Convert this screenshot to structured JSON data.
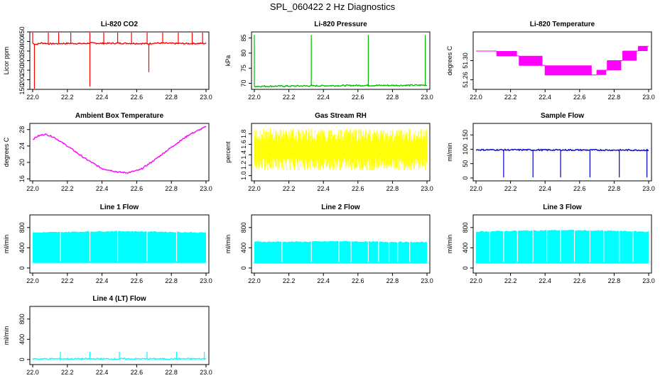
{
  "title": "SPL_060422  2 Hz Diagnostics",
  "chart_data": [
    {
      "type": "line",
      "title": "Li-820 CO2",
      "ylabel": "Licor ppm",
      "color": "#ff0000",
      "xlim": [
        22.0,
        23.0
      ],
      "ylim": [
        150,
        450
      ],
      "xticks": [
        "22.0",
        "22.2",
        "22.4",
        "22.6",
        "22.8",
        "23.0"
      ],
      "yticks": [
        "150",
        "200",
        "250",
        "300",
        "350",
        "400",
        "450"
      ],
      "x": [
        22.0,
        22.02,
        22.05,
        22.1,
        22.2,
        22.3,
        22.33,
        22.4,
        22.5,
        22.6,
        22.67,
        22.7,
        22.8,
        22.9,
        23.0
      ],
      "values": [
        390,
        385,
        392,
        388,
        390,
        389,
        392,
        390,
        391,
        390,
        388,
        392,
        390,
        389,
        390
      ],
      "spikes_up": [
        22.0,
        22.09,
        22.15,
        22.22,
        22.33,
        22.41,
        22.49,
        22.57,
        22.66,
        22.75,
        22.84,
        22.92,
        22.98
      ],
      "spikes_down": [
        {
          "x": 22.01,
          "y": 150
        },
        {
          "x": 22.33,
          "y": 165
        },
        {
          "x": 22.67,
          "y": 240
        }
      ]
    },
    {
      "type": "line",
      "title": "Li-820 Pressure",
      "ylabel": "kPa",
      "color": "#00bb00",
      "xlim": [
        22.0,
        23.0
      ],
      "ylim": [
        68,
        87
      ],
      "xticks": [
        "22.0",
        "22.2",
        "22.4",
        "22.6",
        "22.8",
        "23.0"
      ],
      "yticks": [
        "70",
        "75",
        "80",
        "85"
      ],
      "x": [
        22.0,
        22.2,
        22.4,
        22.6,
        22.8,
        23.0
      ],
      "values": [
        69.0,
        69.1,
        69.2,
        69.3,
        69.3,
        69.4
      ],
      "spikes_up": [
        22.0,
        22.33,
        22.66,
        22.99
      ]
    },
    {
      "type": "line",
      "title": "Li-820 Temperature",
      "ylabel": "degrees C",
      "color": "#ff00ff",
      "xlim": [
        22.0,
        23.0
      ],
      "ylim": [
        51.24,
        51.36
      ],
      "xticks": [
        "22.0",
        "22.2",
        "22.4",
        "22.6",
        "22.8",
        "23.0"
      ],
      "yticks": [
        "51.26",
        "51.30"
      ],
      "levels": [
        {
          "x0": 22.0,
          "x1": 22.12,
          "v": 51.32
        },
        {
          "x0": 22.12,
          "x1": 22.25,
          "v": 51.31
        },
        {
          "x0": 22.25,
          "x1": 22.4,
          "v": 51.29
        },
        {
          "x0": 22.4,
          "x1": 22.7,
          "v": 51.27
        },
        {
          "x0": 22.7,
          "x1": 22.76,
          "v": 51.28
        },
        {
          "x0": 22.76,
          "x1": 22.85,
          "v": 51.3
        },
        {
          "x0": 22.85,
          "x1": 22.94,
          "v": 51.32
        },
        {
          "x0": 22.94,
          "x1": 23.0,
          "v": 51.33
        }
      ]
    },
    {
      "type": "line",
      "title": "Ambient Box Temperature",
      "ylabel": "degrees C",
      "color": "#ff00ff",
      "xlim": [
        22.0,
        23.0
      ],
      "ylim": [
        15.5,
        29.5
      ],
      "xticks": [
        "22.0",
        "22.2",
        "22.4",
        "22.6",
        "22.8",
        "23.0"
      ],
      "yticks": [
        "16",
        "20",
        "24",
        "28"
      ],
      "x": [
        22.0,
        22.03,
        22.07,
        22.12,
        22.2,
        22.3,
        22.4,
        22.5,
        22.55,
        22.62,
        22.7,
        22.8,
        22.9,
        23.0
      ],
      "values": [
        25.6,
        26.4,
        26.9,
        26.2,
        24.0,
        21.0,
        18.5,
        17.6,
        17.5,
        18.2,
        20.5,
        23.7,
        26.7,
        28.7
      ]
    },
    {
      "type": "line",
      "title": "Gas Stream RH",
      "ylabel": "percent",
      "color": "#ffff00",
      "xlim": [
        22.0,
        23.0
      ],
      "ylim": [
        0.9,
        2.0
      ],
      "xticks": [
        "22.0",
        "22.2",
        "22.4",
        "22.6",
        "22.8",
        "23.0"
      ],
      "yticks": [
        "1.0",
        "1.2",
        "1.4",
        "1.6",
        "1.8"
      ],
      "x": [
        22.0,
        23.0
      ],
      "values": [
        1.5,
        1.5
      ],
      "band": [
        1.1,
        1.9
      ]
    },
    {
      "type": "line",
      "title": "Sample Flow",
      "ylabel": "ml/min",
      "color": "#0000cc",
      "xlim": [
        22.0,
        23.0
      ],
      "ylim": [
        -10,
        190
      ],
      "xticks": [
        "22.0",
        "22.2",
        "22.4",
        "22.6",
        "22.8",
        "23.0"
      ],
      "yticks": [
        "0",
        "50",
        "100",
        "150"
      ],
      "x": [
        22.0,
        23.0
      ],
      "values": [
        98,
        97
      ],
      "spikes_down": [
        22.16,
        22.33,
        22.49,
        22.66,
        22.83,
        22.99
      ]
    },
    {
      "type": "area",
      "title": "Line 1 Flow",
      "ylabel": "ml/min",
      "color": "#00ffff",
      "xlim": [
        22.0,
        23.0
      ],
      "ylim": [
        -100,
        1050
      ],
      "xticks": [
        "22.0",
        "22.2",
        "22.4",
        "22.6",
        "22.8",
        "23.0"
      ],
      "yticks": [
        "0",
        "400",
        "800"
      ],
      "x": [
        22.0,
        22.3,
        22.5,
        22.7,
        23.0
      ],
      "values": [
        700,
        720,
        730,
        720,
        700
      ],
      "low": 100,
      "gaps": [
        22.16,
        22.33,
        22.49,
        22.66,
        22.83
      ]
    },
    {
      "type": "area",
      "title": "Line 2 Flow",
      "ylabel": "ml/min",
      "color": "#00ffff",
      "xlim": [
        22.0,
        23.0
      ],
      "ylim": [
        -100,
        1050
      ],
      "xticks": [
        "22.0",
        "22.2",
        "22.4",
        "22.6",
        "22.8",
        "23.0"
      ],
      "yticks": [
        "0",
        "400",
        "800"
      ],
      "x": [
        22.0,
        22.3,
        22.5,
        22.7,
        23.0
      ],
      "values": [
        520,
        520,
        530,
        520,
        510
      ],
      "low": 90,
      "gaps": [
        22.16,
        22.33,
        22.49,
        22.56,
        22.66,
        22.72,
        22.78,
        22.83,
        22.9
      ]
    },
    {
      "type": "area",
      "title": "Line 3 Flow",
      "ylabel": "ml/min",
      "color": "#00ffff",
      "xlim": [
        22.0,
        23.0
      ],
      "ylim": [
        -100,
        1050
      ],
      "xticks": [
        "22.0",
        "22.2",
        "22.4",
        "22.6",
        "22.8",
        "23.0"
      ],
      "yticks": [
        "0",
        "400",
        "800"
      ],
      "x": [
        22.0,
        22.3,
        22.5,
        22.7,
        23.0
      ],
      "values": [
        720,
        740,
        750,
        740,
        720
      ],
      "low": 90,
      "gaps": [
        22.08,
        22.16,
        22.24,
        22.33,
        22.41,
        22.49,
        22.57,
        22.66,
        22.74,
        22.83,
        22.91
      ]
    },
    {
      "type": "line",
      "title": "Line 4 (LT) Flow",
      "ylabel": "ml/min",
      "color": "#00ffff",
      "xlim": [
        22.0,
        23.0
      ],
      "ylim": [
        -100,
        1050
      ],
      "xticks": [
        "22.0",
        "22.2",
        "22.4",
        "22.6",
        "22.8",
        "23.0"
      ],
      "yticks": [
        "0",
        "400",
        "800"
      ],
      "x": [
        22.0,
        23.0
      ],
      "values": [
        12,
        12
      ],
      "spikes_up": [
        22.16,
        22.33,
        22.5,
        22.66,
        22.83,
        22.99
      ]
    }
  ]
}
